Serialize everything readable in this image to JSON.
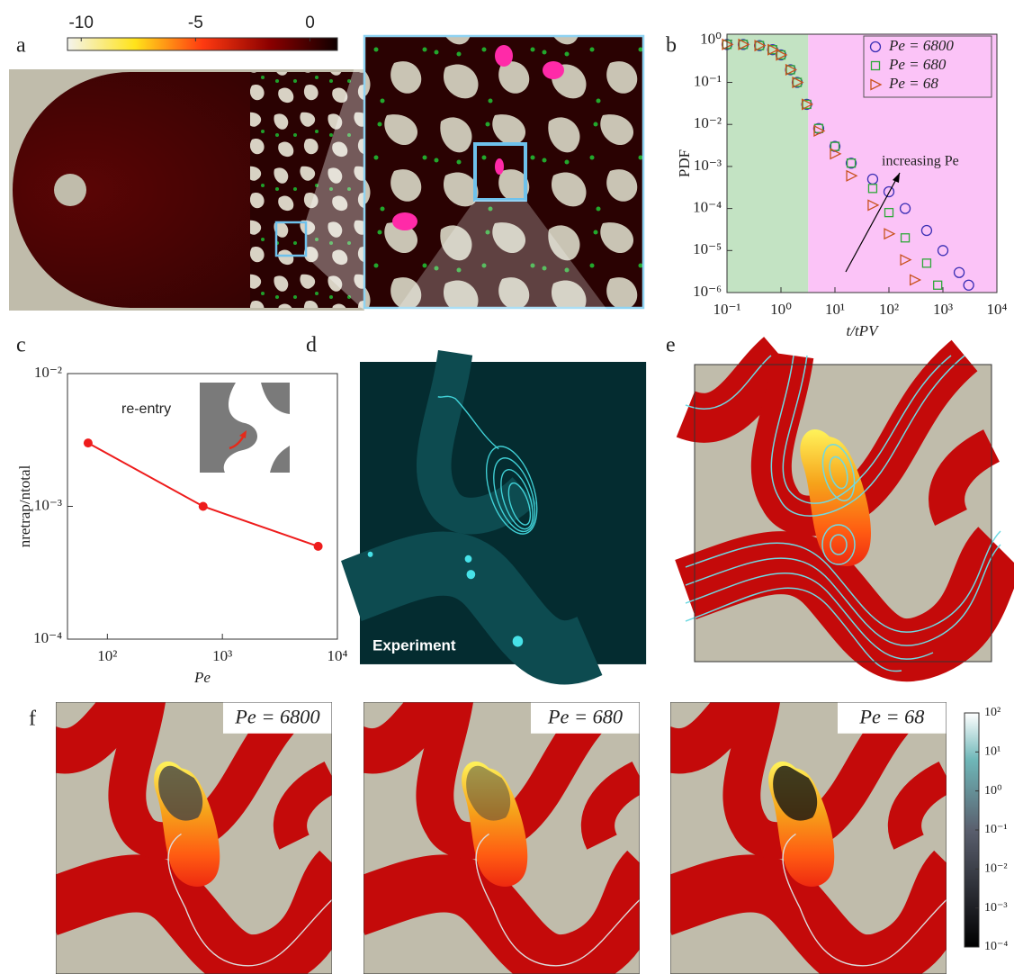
{
  "chart_data": [
    {
      "type": "scatter",
      "log_x": true,
      "log_y": true,
      "x_label": "t/tPV",
      "y_label": "PDF",
      "xlim": [
        0.1,
        10000
      ],
      "ylim": [
        1e-06,
        1.4
      ],
      "xticks": [
        {
          "value": 0.1,
          "label": "10⁻¹"
        },
        {
          "value": 1,
          "label": "10⁰"
        },
        {
          "value": 10,
          "label": "10¹"
        },
        {
          "value": 100,
          "label": "10²"
        },
        {
          "value": 1000,
          "label": "10³"
        },
        {
          "value": 10000,
          "label": "10⁴"
        }
      ],
      "yticks": [
        {
          "value": 1e-06,
          "label": "10⁻⁶"
        },
        {
          "value": 1e-05,
          "label": "10⁻⁵"
        },
        {
          "value": 0.0001,
          "label": "10⁻⁴"
        },
        {
          "value": 0.001,
          "label": "10⁻³"
        },
        {
          "value": 0.01,
          "label": "10⁻²"
        },
        {
          "value": 0.1,
          "label": "10⁻¹"
        },
        {
          "value": 1,
          "label": "10⁰"
        }
      ],
      "regions": [
        {
          "from": 0.1,
          "to": 3.2,
          "color": "#c3e3c3"
        },
        {
          "from": 3.2,
          "to": 10000,
          "color": "#fbc3f7"
        }
      ],
      "annotation": "increasing Pe",
      "legend": "upper right",
      "series": [
        {
          "name": "Pe = 6800",
          "color": "#3b2fb5",
          "marker": "circle",
          "x": [
            0.1,
            0.2,
            0.4,
            0.7,
            1,
            1.5,
            2,
            3,
            5,
            10,
            20,
            50,
            100,
            200,
            500,
            1000,
            2000,
            3000
          ],
          "values": [
            0.8,
            0.8,
            0.75,
            0.6,
            0.45,
            0.2,
            0.1,
            0.03,
            0.008,
            0.003,
            0.0012,
            0.0005,
            0.00025,
            0.0001,
            3e-05,
            1e-05,
            3e-06,
            1.5e-06
          ]
        },
        {
          "name": "Pe = 680",
          "color": "#2fa83a",
          "marker": "square",
          "x": [
            0.1,
            0.2,
            0.4,
            0.7,
            1,
            1.5,
            2,
            3,
            5,
            10,
            20,
            50,
            100,
            200,
            500,
            800
          ],
          "values": [
            0.8,
            0.8,
            0.75,
            0.6,
            0.45,
            0.2,
            0.1,
            0.03,
            0.008,
            0.003,
            0.0012,
            0.0003,
            8e-05,
            2e-05,
            5e-06,
            1.5e-06
          ]
        },
        {
          "name": "Pe = 68",
          "color": "#c9521e",
          "marker": "triangle",
          "x": [
            0.1,
            0.2,
            0.4,
            0.7,
            1,
            1.5,
            2,
            3,
            5,
            10,
            20,
            50,
            100,
            200,
            300
          ],
          "values": [
            0.8,
            0.8,
            0.75,
            0.6,
            0.45,
            0.2,
            0.1,
            0.03,
            0.007,
            0.002,
            0.0006,
            0.00012,
            2.5e-05,
            6e-06,
            2e-06
          ]
        }
      ]
    },
    {
      "type": "line",
      "log_x": true,
      "log_y": true,
      "x_label": "Pe",
      "y_label": "nretrap/ntotal",
      "annotation": "re-entry",
      "xlim": [
        45,
        10000
      ],
      "ylim": [
        0.0001,
        0.01
      ],
      "xticks": [
        {
          "value": 100,
          "label": "10²"
        },
        {
          "value": 1000,
          "label": "10³"
        },
        {
          "value": 10000,
          "label": "10⁴"
        }
      ],
      "yticks": [
        {
          "value": 0.0001,
          "label": "10⁻⁴"
        },
        {
          "value": 0.001,
          "label": "10⁻³"
        },
        {
          "value": 0.01,
          "label": "10⁻²"
        }
      ],
      "x": [
        68,
        680,
        6800
      ],
      "color": "#ee1c1c",
      "values": [
        0.003,
        0.001,
        0.0005
      ]
    }
  ],
  "panels": {
    "a": {
      "label": "a",
      "colorbar": {
        "lim": [
          -10.6,
          1.2
        ],
        "ticks": [
          -10,
          -5,
          0
        ]
      }
    },
    "b": {
      "label": "b"
    },
    "c": {
      "label": "c"
    },
    "d": {
      "label": "d",
      "caption": "Experiment"
    },
    "e": {
      "label": "e"
    },
    "f": {
      "label": "f",
      "titles": [
        "Pe = 6800",
        "Pe = 680",
        "Pe = 68"
      ],
      "colorbar": {
        "log": true,
        "lim": [
          0.0001,
          100
        ],
        "ticks": [
          {
            "value": 0.0001,
            "label": "10⁻⁴"
          },
          {
            "value": 0.001,
            "label": "10⁻³"
          },
          {
            "value": 0.01,
            "label": "10⁻²"
          },
          {
            "value": 0.1,
            "label": "10⁻¹"
          },
          {
            "value": 1,
            "label": "10⁰"
          },
          {
            "value": 10,
            "label": "10¹"
          },
          {
            "value": 100,
            "label": "10²"
          }
        ]
      }
    }
  }
}
